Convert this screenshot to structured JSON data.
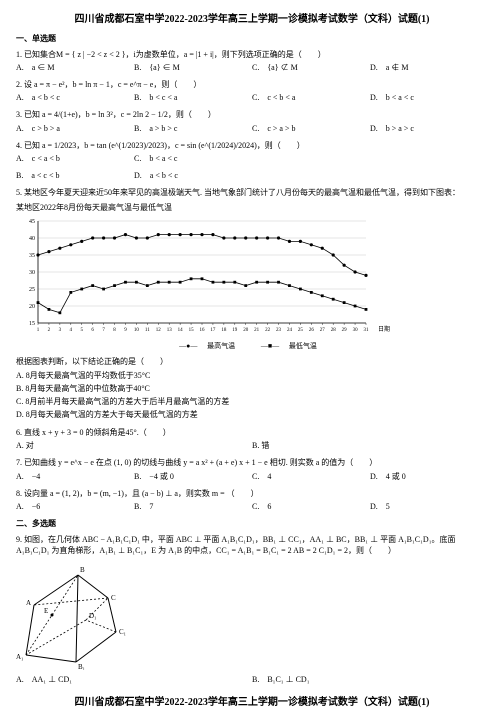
{
  "header": {
    "title": "四川省成都石室中学2022-2023学年高三上学期一诊模拟考试数学（文科）试题(1)"
  },
  "section1": {
    "title": "一、单选题"
  },
  "q1": {
    "stem": "1. 已知集合M = { z | −2 < z < 2 }，i为虚数单位，a = |1 + i|，则下列选项正确的是（　　）",
    "a": "A.　a ∈ M",
    "b": "B.　{a} ∈ M",
    "c": "C.　{a} ⊄ M",
    "d": "D.　a ∉ M"
  },
  "q2": {
    "stem": "2. 设 a = π − e²，b = ln π − 1，c = e^π − e，则（　　）",
    "a": "A.　a < b < c",
    "b": "B.　b < c < a",
    "c": "C.　c < b < a",
    "d": "D.　b < a < c"
  },
  "q3": {
    "stem": "3. 已知 a = 4/(1+e)，b = ln 3²，c = 2ln 2 − 1/2，则（　　）",
    "a": "A.　c > b > a",
    "b": "B.　a > b > c",
    "c": "C.　c > a > b",
    "d": "D.　b > a > c"
  },
  "q4": {
    "stem": "4. 已知 a = 1/2023，b = tan (e^(1/2023)/2023)，c = sin (e^(1/2024)/2024)，则（　　）",
    "a": "A.　c < a < b",
    "b": "B.　a < c < b",
    "c": "C.　b < a < c",
    "d": "D.　a < b < c"
  },
  "q5": {
    "intro": "5. 某地区今年夏天迎来近50年来罕见的高温极端天气. 当地气象部门统计了八月份每天的最高气温和最低气温，得到如下图表：",
    "caption": "某地区2022年8月份每天最高气温与最低气温",
    "yticks": [
      "45",
      "40",
      "35",
      "30",
      "25",
      "20",
      "15"
    ],
    "xlabel": "日期",
    "xmax": 31,
    "high": [
      35,
      36,
      37,
      38,
      39,
      40,
      40,
      40,
      41,
      40,
      40,
      41,
      41,
      41,
      41,
      41,
      41,
      40,
      40,
      40,
      40,
      40,
      40,
      39,
      39,
      38,
      37,
      35,
      32,
      30,
      29
    ],
    "low": [
      21,
      19,
      18,
      24,
      25,
      26,
      25,
      26,
      27,
      27,
      26,
      27,
      27,
      27,
      28,
      28,
      27,
      27,
      27,
      26,
      27,
      27,
      27,
      26,
      25,
      24,
      23,
      22,
      21,
      20,
      19
    ],
    "ymin": 15,
    "ymax": 45,
    "legend_high": "最高气温",
    "legend_low": "最低气温",
    "postline": "根据图表判断，以下结论正确的是（　　）",
    "a": "A.  8月每天最高气温的平均数低于35°C",
    "b": "B.  8月每天最高气温的中位数高于40°C",
    "c": "C.  8月前半月每天最高气温的方差大于后半月最高气温的方差",
    "d": "D.  8月每天最高气温的方差大于每天最低气温的方差"
  },
  "q6": {
    "stem": "6. 直线 x + y + 3 = 0 的倾斜角是45°.（　　）",
    "a": "A.  对",
    "b": "B.  错"
  },
  "q7": {
    "stem": "7. 已知曲线 y = e^x − e 在点 (1, 0) 的切线与曲线 y = a x² + (a + e) x + 1 − e 相切.  则实数 a 的值为（　　）",
    "a": "A.　−4",
    "b": "B.　−4 或 0",
    "c": "C.　4",
    "d": "D.　4 或 0"
  },
  "q8": {
    "stem": "8. 设向量 a = (1, 2)，b = (m, −1)，且 (a − b) ⊥ a，则实数 m = （　　）",
    "a": "A.　−6",
    "b": "B.　7",
    "c": "C.　6",
    "d": "D.　5"
  },
  "section2": {
    "title": "二、多选题"
  },
  "q9": {
    "stem": "9. 如图，在几何体 ABC − A₁B₁C₁D₁ 中，平面 ABC ⊥ 平面 A₁B₁C₁D₁，BB₁ ⊥ CC₁，AA₁ ⊥ BC，BB₁ ⊥ 平面 A₁B₁C₁D₁。底面 A₁B₁C₁D₁ 为直角梯形，A₁B₁ ⊥ B₁C₁，E 为 A₁B 的中点，CC₁ = A₁B₁ = B₁C₁ = 2 AB = 2 C₁D₁ = 2，则（　　）",
    "a": "A.　AA₁ ⊥ CD₁",
    "b": "B.　B₁C₁ ⊥ CD₁",
    "labels": {
      "A": "A",
      "B": "B",
      "C": "C",
      "A1": "A₁",
      "B1": "B₁",
      "C1": "C₁",
      "D1": "D₁",
      "E": "E"
    }
  },
  "footer": {
    "title": "四川省成都石室中学2022-2023学年高三上学期一诊模拟考试数学（文科）试题(1)"
  }
}
